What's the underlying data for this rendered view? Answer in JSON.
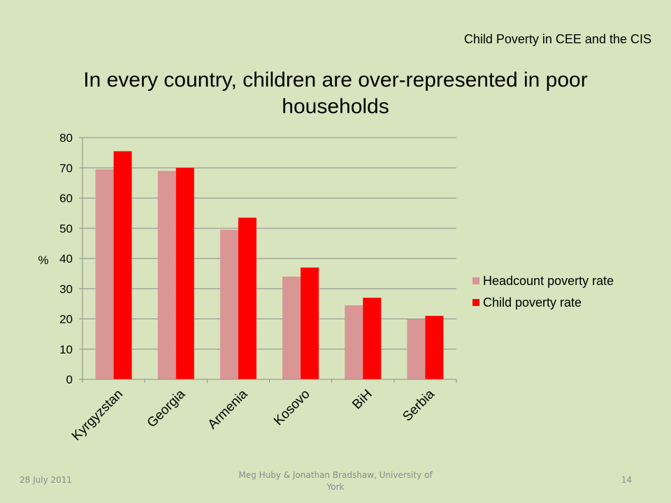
{
  "header": {
    "title": "Child Poverty in CEE and the CIS"
  },
  "slide": {
    "title": "In every country, children are over-represented in poor households"
  },
  "chart_data": {
    "type": "bar",
    "title": "",
    "ylabel": "%",
    "xlabel": "",
    "ylim": [
      0,
      80
    ],
    "yticks": [
      0,
      10,
      20,
      30,
      40,
      50,
      60,
      70,
      80
    ],
    "grid": true,
    "legend_position": "right",
    "categories": [
      "Kyrgyzstan",
      "Georgia",
      "Armenia",
      "Kosovo",
      "BiH",
      "Serbia"
    ],
    "series": [
      {
        "name": "Headcount poverty rate",
        "color": "#d99694",
        "values": [
          69.5,
          69,
          49.5,
          34,
          24.5,
          20
        ]
      },
      {
        "name": "Child poverty rate",
        "color": "#ff0000",
        "values": [
          75.5,
          70,
          53.5,
          37,
          27,
          21
        ]
      }
    ]
  },
  "footer": {
    "date": "28 July 2011",
    "author": "Meg Huby & Jonathan Bradshaw, University of York",
    "page": "14"
  }
}
